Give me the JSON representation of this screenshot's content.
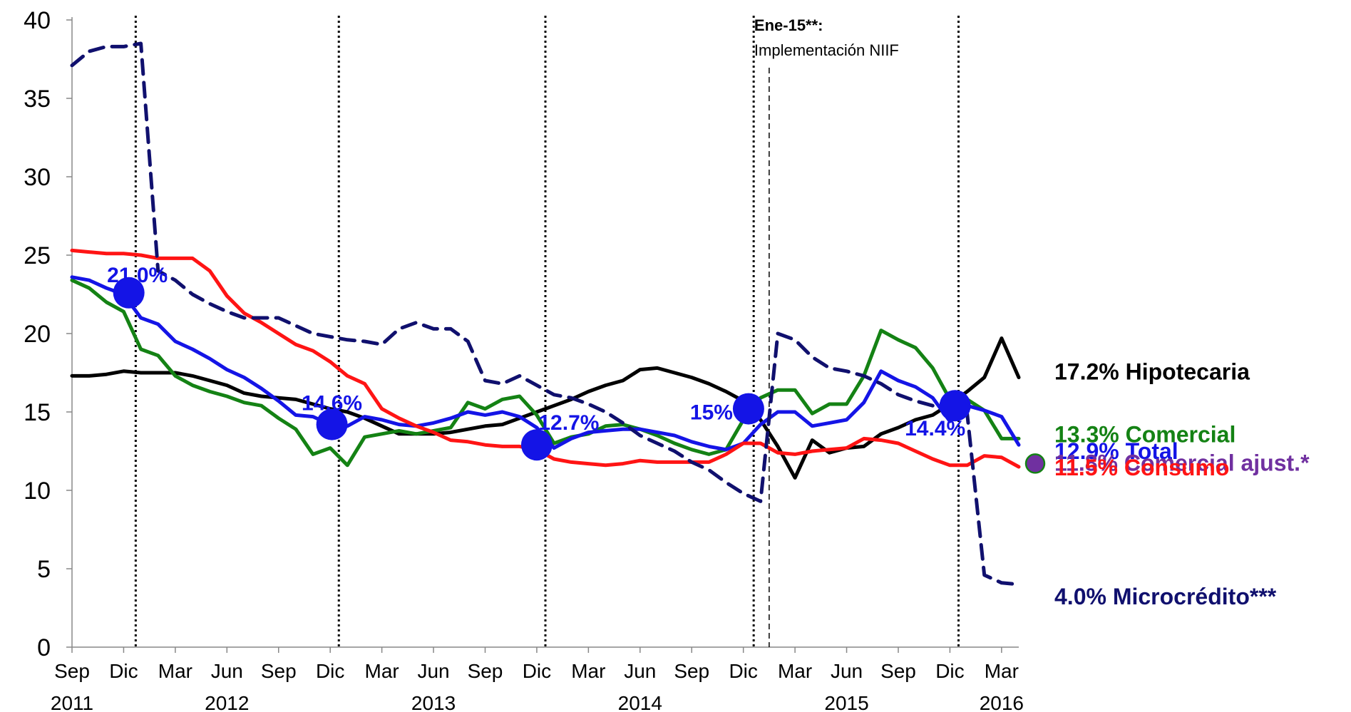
{
  "chart_data": {
    "type": "line",
    "ylim": [
      0,
      40
    ],
    "y_ticks": [
      "0",
      "5",
      "10",
      "15",
      "20",
      "25",
      "30",
      "35",
      "40"
    ],
    "x_range_months": [
      0,
      55
    ],
    "x_ticks": [
      {
        "m": 0,
        "label": "Sep",
        "year": "2011"
      },
      {
        "m": 3,
        "label": "Dic",
        "year": ""
      },
      {
        "m": 6,
        "label": "Mar",
        "year": ""
      },
      {
        "m": 9,
        "label": "Jun",
        "year": "2012"
      },
      {
        "m": 12,
        "label": "Sep",
        "year": ""
      },
      {
        "m": 15,
        "label": "Dic",
        "year": ""
      },
      {
        "m": 18,
        "label": "Mar",
        "year": ""
      },
      {
        "m": 21,
        "label": "Jun",
        "year": "2013"
      },
      {
        "m": 24,
        "label": "Sep",
        "year": ""
      },
      {
        "m": 27,
        "label": "Dic",
        "year": ""
      },
      {
        "m": 30,
        "label": "Mar",
        "year": ""
      },
      {
        "m": 33,
        "label": "Jun",
        "year": "2014"
      },
      {
        "m": 36,
        "label": "Sep",
        "year": ""
      },
      {
        "m": 39,
        "label": "Dic",
        "year": ""
      },
      {
        "m": 42,
        "label": "Mar",
        "year": ""
      },
      {
        "m": 45,
        "label": "Jun",
        "year": "2015"
      },
      {
        "m": 48,
        "label": "Sep",
        "year": ""
      },
      {
        "m": 51,
        "label": "Dic",
        "year": ""
      },
      {
        "m": 54,
        "label": "Mar",
        "year": "2016"
      }
    ],
    "vlines_dotted": [
      3.7,
      15.5,
      27.5,
      39.6,
      51.5
    ],
    "vline_dashed": 40.5,
    "annotation": {
      "title": "Ene-15**:",
      "text": "Implementación NIIF",
      "m": 39.3
    },
    "series": [
      {
        "name": "Hipotecaria",
        "legend": "17.2%  Hipotecaria",
        "color": "#000000",
        "dash": false,
        "values": [
          17.3,
          17.3,
          17.4,
          17.6,
          17.5,
          17.5,
          17.5,
          17.3,
          17.0,
          16.7,
          16.2,
          16.0,
          15.9,
          15.8,
          15.5,
          15.2,
          15.0,
          14.6,
          14.1,
          13.6,
          13.6,
          13.6,
          13.7,
          13.9,
          14.1,
          14.2,
          14.6,
          15.0,
          15.4,
          15.8,
          16.3,
          16.7,
          17.0,
          17.7,
          17.8,
          17.5,
          17.2,
          16.8,
          16.3,
          15.7,
          14.5,
          12.8,
          10.8,
          13.2,
          12.4,
          12.7,
          12.8,
          13.6,
          14.0,
          14.5,
          14.8,
          15.5,
          16.3,
          17.2,
          19.7,
          17.2
        ]
      },
      {
        "name": "Comercial",
        "legend": "13.3% Comercial",
        "color": "#148214",
        "dash": false,
        "values": [
          23.4,
          22.9,
          22.0,
          21.4,
          19.0,
          18.6,
          17.3,
          16.7,
          16.3,
          16.0,
          15.6,
          15.4,
          14.6,
          13.9,
          12.3,
          12.7,
          11.6,
          13.4,
          13.6,
          13.8,
          13.6,
          13.8,
          14.0,
          15.6,
          15.2,
          15.8,
          16.0,
          14.8,
          13.0,
          13.4,
          13.6,
          14.1,
          14.2,
          13.9,
          13.5,
          13.0,
          12.6,
          12.3,
          12.6,
          14.5,
          15.9,
          16.4,
          16.4,
          14.9,
          15.5,
          15.5,
          17.3,
          20.2,
          19.6,
          19.1,
          17.8,
          15.8,
          15.8,
          15.1,
          13.3,
          13.3
        ]
      },
      {
        "name": "Total",
        "legend": "12.9% Total",
        "color": "#1414e6",
        "dash": false,
        "values": [
          23.6,
          23.4,
          22.9,
          22.5,
          21.0,
          20.6,
          19.5,
          19.0,
          18.4,
          17.7,
          17.2,
          16.5,
          15.7,
          14.8,
          14.7,
          14.2,
          14.1,
          14.7,
          14.5,
          14.2,
          14.1,
          14.3,
          14.6,
          15.0,
          14.8,
          15.0,
          14.7,
          14.0,
          12.7,
          13.3,
          13.7,
          13.8,
          13.9,
          13.9,
          13.7,
          13.5,
          13.1,
          12.8,
          12.6,
          13.0,
          14.2,
          15.0,
          15.0,
          14.1,
          14.3,
          14.5,
          15.6,
          17.6,
          17.0,
          16.6,
          15.9,
          14.4,
          15.4,
          15.1,
          14.7,
          12.9
        ]
      },
      {
        "name": "Consumo",
        "legend": "11.5% Consumo",
        "color": "#ff1414",
        "dash": false,
        "values": [
          25.3,
          25.2,
          25.1,
          25.1,
          25.0,
          24.8,
          24.8,
          24.8,
          24.0,
          22.4,
          21.3,
          20.7,
          20.0,
          19.3,
          18.9,
          18.2,
          17.3,
          16.8,
          15.2,
          14.6,
          14.1,
          13.7,
          13.2,
          13.1,
          12.9,
          12.8,
          12.8,
          12.6,
          12.0,
          11.8,
          11.7,
          11.6,
          11.7,
          11.9,
          11.8,
          11.8,
          11.8,
          11.8,
          12.3,
          13.0,
          13.0,
          12.4,
          12.3,
          12.5,
          12.6,
          12.7,
          13.3,
          13.2,
          13.0,
          12.5,
          12.0,
          11.6,
          11.6,
          12.2,
          12.1,
          11.5
        ]
      },
      {
        "name": "Microcrédito",
        "legend": "4.0% Microcrédito***",
        "color": "#10106e",
        "dash": true,
        "values": [
          37.1,
          38.0,
          38.3,
          38.3,
          38.5,
          24.0,
          23.4,
          22.5,
          21.9,
          21.4,
          21.0,
          21.0,
          21.0,
          20.5,
          20.0,
          19.8,
          19.6,
          19.5,
          19.3,
          20.3,
          20.7,
          20.3,
          20.3,
          19.5,
          17.0,
          16.8,
          17.3,
          16.7,
          16.1,
          15.9,
          15.5,
          15.0,
          14.3,
          13.5,
          13.0,
          12.5,
          11.8,
          11.3,
          10.5,
          9.8,
          9.3,
          20.0,
          19.6,
          18.5,
          17.8,
          17.6,
          17.3,
          16.8,
          16.1,
          15.7,
          15.4,
          15.4,
          14.9,
          4.6,
          4.1,
          4.0
        ]
      }
    ],
    "highlight_points": [
      {
        "m": 3.3,
        "v": 22.6,
        "label": "21.0%",
        "label_dx": 12,
        "label_dy": -15
      },
      {
        "m": 15.1,
        "v": 14.2,
        "label": "14.6%",
        "label_dx": 0,
        "label_dy": -20
      },
      {
        "m": 27.0,
        "v": 12.9,
        "label": "12.7%",
        "label_dx": 45,
        "label_dy": -21
      },
      {
        "m": 39.3,
        "v": 15.2,
        "label": "15%",
        "label_dx": -52,
        "label_dy": 15
      },
      {
        "m": 51.3,
        "v": 15.4,
        "label": "14.4%",
        "label_dx": -28,
        "label_dy": 42
      }
    ],
    "legend_entries": [
      {
        "label": "17.2%  Hipotecaria",
        "color": "#000000",
        "v": 17.2,
        "dy": 3
      },
      {
        "label": "13.3% Comercial",
        "color": "#148214",
        "v": 13.3,
        "dy": 5
      },
      {
        "label": "12.9% Total",
        "color": "#1414e6",
        "v": 12.9,
        "dy": 20
      },
      {
        "label": "11.8% Comercial ajust.*",
        "color": "#7030a0",
        "v": 11.8,
        "dy": 12,
        "marker": true
      },
      {
        "label": "11.5% Consumo",
        "color": "#ff1414",
        "v": 11.5,
        "dy": 12
      },
      {
        "label": "4.0% Microcrédito***",
        "color": "#10106e",
        "v": 4.0,
        "dy": 28
      }
    ]
  }
}
